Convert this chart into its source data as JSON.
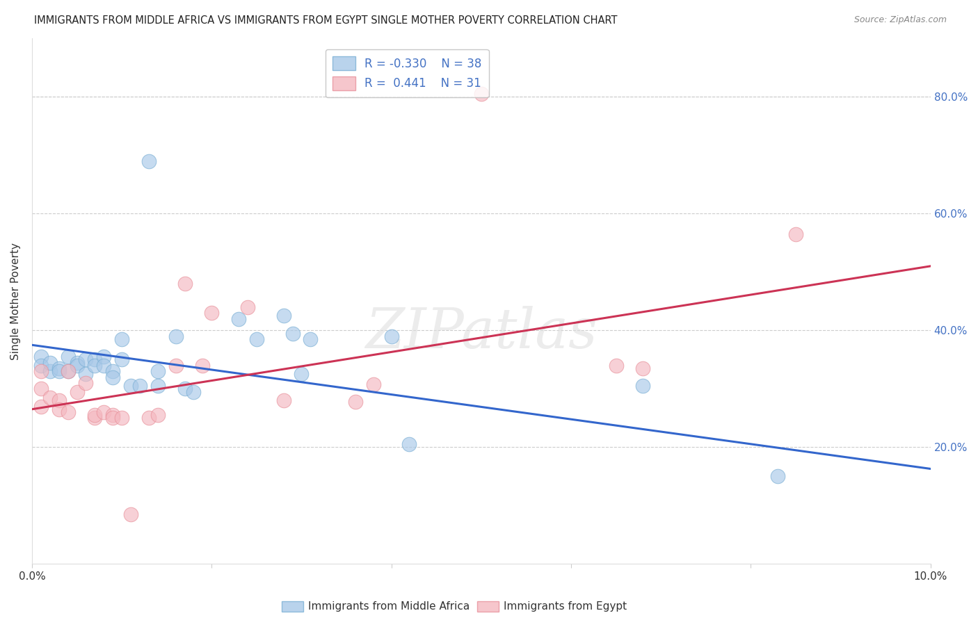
{
  "title": "IMMIGRANTS FROM MIDDLE AFRICA VS IMMIGRANTS FROM EGYPT SINGLE MOTHER POVERTY CORRELATION CHART",
  "source": "Source: ZipAtlas.com",
  "ylabel": "Single Mother Poverty",
  "ylabel_right_ticks": [
    "20.0%",
    "40.0%",
    "60.0%",
    "80.0%"
  ],
  "ylabel_right_vals": [
    0.2,
    0.4,
    0.6,
    0.8
  ],
  "xlim": [
    0.0,
    0.1
  ],
  "ylim": [
    0.0,
    0.9
  ],
  "blue_r": -0.33,
  "blue_n": 38,
  "pink_r": 0.441,
  "pink_n": 31,
  "blue_color": "#a8c8e8",
  "pink_color": "#f4b8c0",
  "blue_line_color": "#3366cc",
  "pink_line_color": "#cc3355",
  "blue_scatter": [
    [
      0.001,
      0.355
    ],
    [
      0.001,
      0.34
    ],
    [
      0.002,
      0.33
    ],
    [
      0.002,
      0.345
    ],
    [
      0.003,
      0.335
    ],
    [
      0.003,
      0.33
    ],
    [
      0.004,
      0.355
    ],
    [
      0.004,
      0.33
    ],
    [
      0.005,
      0.345
    ],
    [
      0.005,
      0.34
    ],
    [
      0.006,
      0.35
    ],
    [
      0.006,
      0.325
    ],
    [
      0.007,
      0.35
    ],
    [
      0.007,
      0.34
    ],
    [
      0.008,
      0.355
    ],
    [
      0.008,
      0.34
    ],
    [
      0.009,
      0.33
    ],
    [
      0.009,
      0.32
    ],
    [
      0.01,
      0.35
    ],
    [
      0.01,
      0.385
    ],
    [
      0.011,
      0.305
    ],
    [
      0.012,
      0.305
    ],
    [
      0.013,
      0.69
    ],
    [
      0.014,
      0.33
    ],
    [
      0.014,
      0.305
    ],
    [
      0.016,
      0.39
    ],
    [
      0.017,
      0.3
    ],
    [
      0.018,
      0.295
    ],
    [
      0.023,
      0.42
    ],
    [
      0.025,
      0.385
    ],
    [
      0.028,
      0.425
    ],
    [
      0.029,
      0.395
    ],
    [
      0.03,
      0.325
    ],
    [
      0.031,
      0.385
    ],
    [
      0.04,
      0.39
    ],
    [
      0.042,
      0.205
    ],
    [
      0.068,
      0.305
    ],
    [
      0.083,
      0.15
    ]
  ],
  "pink_scatter": [
    [
      0.001,
      0.33
    ],
    [
      0.001,
      0.3
    ],
    [
      0.001,
      0.27
    ],
    [
      0.002,
      0.285
    ],
    [
      0.003,
      0.28
    ],
    [
      0.003,
      0.265
    ],
    [
      0.004,
      0.26
    ],
    [
      0.004,
      0.33
    ],
    [
      0.005,
      0.295
    ],
    [
      0.006,
      0.31
    ],
    [
      0.007,
      0.25
    ],
    [
      0.007,
      0.255
    ],
    [
      0.008,
      0.26
    ],
    [
      0.009,
      0.255
    ],
    [
      0.009,
      0.25
    ],
    [
      0.01,
      0.25
    ],
    [
      0.011,
      0.085
    ],
    [
      0.013,
      0.25
    ],
    [
      0.014,
      0.255
    ],
    [
      0.016,
      0.34
    ],
    [
      0.017,
      0.48
    ],
    [
      0.019,
      0.34
    ],
    [
      0.02,
      0.43
    ],
    [
      0.024,
      0.44
    ],
    [
      0.028,
      0.28
    ],
    [
      0.036,
      0.278
    ],
    [
      0.038,
      0.308
    ],
    [
      0.05,
      0.805
    ],
    [
      0.065,
      0.34
    ],
    [
      0.068,
      0.335
    ],
    [
      0.085,
      0.565
    ]
  ],
  "watermark": "ZIPatlas",
  "blue_line_x": [
    0.0,
    0.1
  ],
  "blue_line_y": [
    0.375,
    0.163
  ],
  "pink_line_x": [
    0.0,
    0.1
  ],
  "pink_line_y": [
    0.265,
    0.51
  ]
}
